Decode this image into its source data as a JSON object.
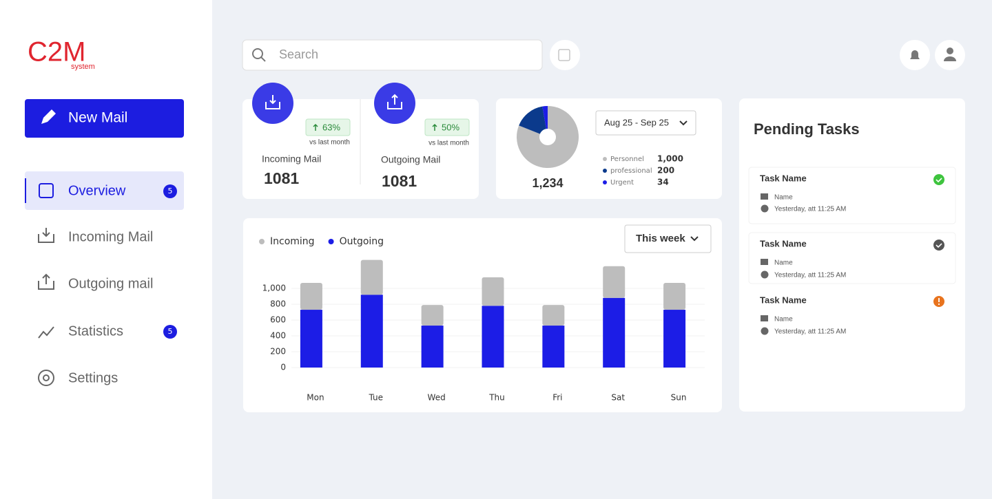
{
  "sidebar": {
    "logo": "C2M",
    "logo_sub": "system",
    "new_mail": "New Mail",
    "nav": [
      {
        "label": "Overview",
        "badge": "5"
      },
      {
        "label": "Incoming Mail"
      },
      {
        "label": "Outgoing mail"
      },
      {
        "label": "Statistics",
        "badge": "5"
      },
      {
        "label": "Settings"
      }
    ]
  },
  "search": {
    "placeholder": "Search"
  },
  "stats": [
    {
      "change": "63%",
      "note": "vs last month",
      "label": "Incoming Mail",
      "value": "1081"
    },
    {
      "change": "50%",
      "note": "vs last month",
      "label": "Outgoing Mail",
      "value": "1081"
    }
  ],
  "date_range": "Aug 25 - Sep 25",
  "period": "This week",
  "pending": {
    "title": "Pending Tasks",
    "tasks": [
      {
        "title": "Task Name",
        "name": "Name",
        "time": "Yesterday, att 11:25 AM"
      },
      {
        "title": "Task Name",
        "name": "Name",
        "time": "Yesterday, att 11:25 AM"
      },
      {
        "title": "Task Name",
        "name": "Name",
        "time": "Yesterday, att 11:25 AM"
      }
    ]
  },
  "chart_data": [
    {
      "type": "pie",
      "total": "1,234",
      "categories": [
        "Personnel",
        "professional",
        "Urgent"
      ],
      "values": [
        1000,
        200,
        34
      ],
      "value_labels": [
        "1,000",
        "200",
        "34"
      ],
      "colors": [
        "#bdbdbd",
        "#0b3a8c",
        "#1c1de6"
      ]
    },
    {
      "type": "stacked-bar",
      "categories": [
        "Mon",
        "Tue",
        "Wed",
        "Thu",
        "Fri",
        "Sat",
        "Sun"
      ],
      "series": [
        {
          "name": "Incoming",
          "color": "#bdbdbd",
          "values": [
            340,
            440,
            260,
            360,
            260,
            400,
            340
          ]
        },
        {
          "name": "Outgoing",
          "color": "#1c1de6",
          "values": [
            730,
            920,
            530,
            780,
            530,
            880,
            730
          ]
        }
      ],
      "ylim": [
        0,
        1400
      ],
      "yticks": [
        0,
        200,
        400,
        600,
        800,
        {
          "value": 1000,
          "label": "1,000"
        }
      ],
      "grid": true,
      "legend": "top-left"
    }
  ]
}
